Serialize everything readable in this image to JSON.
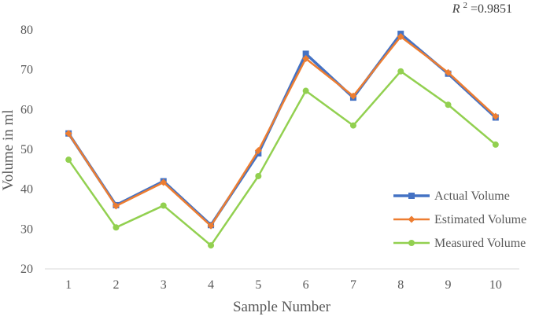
{
  "chart_data": {
    "type": "line",
    "title": "",
    "xlabel": "Sample Number",
    "ylabel": "Volume in ml",
    "ylim": [
      20,
      80
    ],
    "yticks": [
      20,
      30,
      40,
      50,
      60,
      70,
      80
    ],
    "grid": false,
    "legend_position": "bottom-right",
    "categories": [
      "1",
      "2",
      "3",
      "4",
      "5",
      "6",
      "7",
      "8",
      "9",
      "10"
    ],
    "annotation": {
      "var": "R",
      "sup": "2",
      "value": "=0.9851"
    },
    "series": [
      {
        "name": "Actual Volume",
        "color": "#4472c4",
        "marker": "square",
        "values": [
          54,
          36,
          42,
          31,
          49,
          74,
          63,
          79,
          69,
          58
        ]
      },
      {
        "name": "Estimated Volume",
        "color": "#ed7d31",
        "marker": "diamond",
        "values": [
          54,
          35.8,
          41.7,
          30.8,
          49.7,
          72.8,
          63.4,
          78.3,
          69.3,
          58.3
        ]
      },
      {
        "name": "Measured Volume",
        "color": "#92d050",
        "marker": "circle",
        "values": [
          47.4,
          30.4,
          35.9,
          25.9,
          43.3,
          64.7,
          56,
          69.6,
          61.2,
          51.2
        ]
      }
    ]
  }
}
